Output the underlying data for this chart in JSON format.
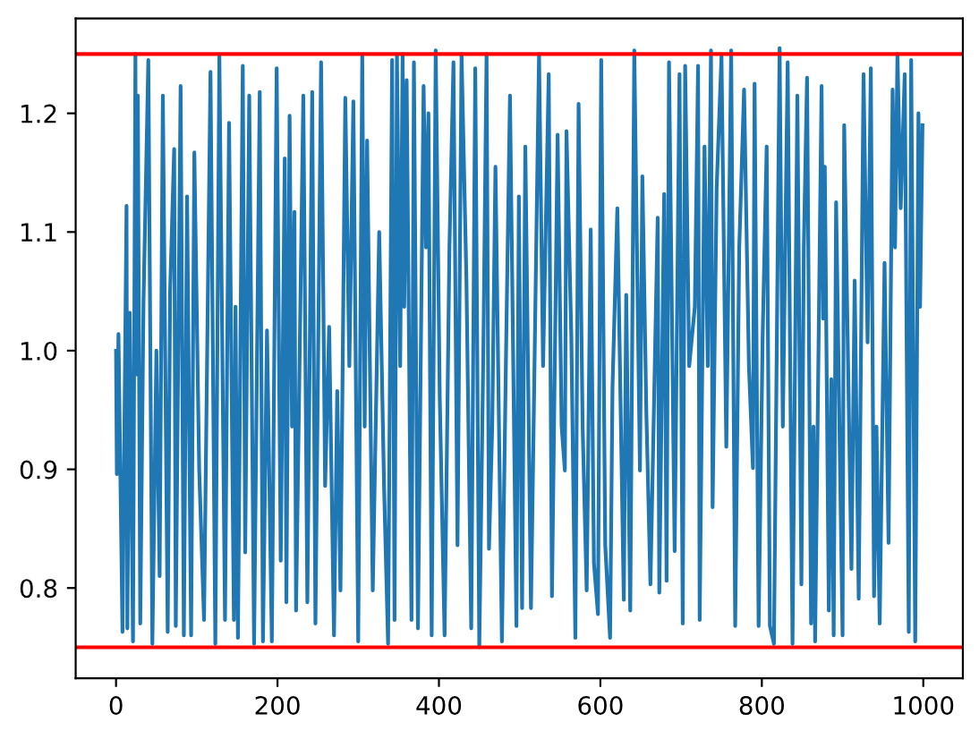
{
  "chart_data": {
    "type": "line",
    "x": [
      0,
      1,
      3,
      8,
      13,
      14,
      17,
      21,
      24,
      25,
      27,
      30,
      34,
      40,
      45,
      50,
      54,
      58,
      64,
      67,
      72,
      74,
      80,
      84,
      88,
      93,
      97,
      103,
      109,
      117,
      123,
      128,
      135,
      140,
      146,
      148,
      151,
      157,
      160,
      165,
      171,
      178,
      182,
      187,
      193,
      199,
      204,
      209,
      211,
      215,
      218,
      221,
      223,
      232,
      237,
      243,
      247,
      254,
      259,
      264,
      270,
      274,
      278,
      284,
      289,
      294,
      300,
      305,
      308,
      311,
      318,
      326,
      332,
      337,
      342,
      345,
      348,
      352,
      355,
      357,
      360,
      366,
      369,
      374,
      381,
      384,
      387,
      391,
      396,
      401,
      407,
      413,
      418,
      423,
      428,
      434,
      440,
      445,
      450,
      455,
      459,
      462,
      466,
      470,
      478,
      483,
      488,
      496,
      499,
      503,
      507,
      514,
      524,
      529,
      536,
      540,
      547,
      552,
      556,
      558,
      564,
      569,
      573,
      578,
      583,
      588,
      592,
      597,
      601,
      606,
      612,
      615,
      621,
      629,
      632,
      637,
      642,
      649,
      652,
      657,
      662,
      671,
      673,
      679,
      682,
      685,
      692,
      698,
      702,
      705,
      710,
      717,
      721,
      723,
      729,
      733,
      737,
      739,
      744,
      750,
      756,
      762,
      767,
      772,
      778,
      784,
      789,
      791,
      796,
      801,
      806,
      810,
      815,
      822,
      826,
      832,
      838,
      844,
      849,
      852,
      856,
      861,
      864,
      866,
      874,
      876,
      878,
      883,
      886,
      889,
      892,
      900,
      902,
      911,
      915,
      920,
      926,
      931,
      935,
      939,
      942,
      946,
      952,
      957,
      962,
      965,
      968,
      972,
      977,
      982,
      985,
      990,
      994,
      996,
      999
    ],
    "series": [
      {
        "color": "#1f77b4",
        "values": [
          1.0,
          0.896,
          1.014,
          0.763,
          1.122,
          0.766,
          1.032,
          0.755,
          1.25,
          0.98,
          1.215,
          0.77,
          1.04,
          1.245,
          0.753,
          1.0,
          0.81,
          1.215,
          0.763,
          1.05,
          1.17,
          0.768,
          1.223,
          0.76,
          1.13,
          0.76,
          1.167,
          0.9,
          0.773,
          1.235,
          0.753,
          1.248,
          0.773,
          1.192,
          0.773,
          1.037,
          0.758,
          1.24,
          0.83,
          1.215,
          0.753,
          1.218,
          0.755,
          1.017,
          0.755,
          1.238,
          0.823,
          1.162,
          0.788,
          1.198,
          0.936,
          1.117,
          0.781,
          1.215,
          0.788,
          1.218,
          0.77,
          1.243,
          0.886,
          1.02,
          0.76,
          0.966,
          0.798,
          1.213,
          0.987,
          1.21,
          0.755,
          1.248,
          0.936,
          1.177,
          0.798,
          1.1,
          0.886,
          0.753,
          1.245,
          0.773,
          1.248,
          0.987,
          1.25,
          1.037,
          1.228,
          0.773,
          1.243,
          0.766,
          1.223,
          1.087,
          1.2,
          0.76,
          1.253,
          0.961,
          0.76,
          1.087,
          1.243,
          0.836,
          1.25,
          1.062,
          0.766,
          1.238,
          0.75,
          1.0,
          1.25,
          0.833,
          0.936,
          1.155,
          0.755,
          0.992,
          1.215,
          0.768,
          1.13,
          0.783,
          1.172,
          0.783,
          1.25,
          0.987,
          1.233,
          0.793,
          1.182,
          0.936,
          0.899,
          1.185,
          1.012,
          0.758,
          1.208,
          0.936,
          0.798,
          1.102,
          0.821,
          0.778,
          1.245,
          0.836,
          0.758,
          0.969,
          1.12,
          0.79,
          1.047,
          0.781,
          1.253,
          0.899,
          1.147,
          0.946,
          0.803,
          1.112,
          0.796,
          1.132,
          0.806,
          1.243,
          0.831,
          1.233,
          0.77,
          1.24,
          0.987,
          1.037,
          1.24,
          0.773,
          1.172,
          0.987,
          1.253,
          0.868,
          1.137,
          1.248,
          0.919,
          1.253,
          0.768,
          1.087,
          1.22,
          0.987,
          0.901,
          1.225,
          0.768,
          1.012,
          1.172,
          0.768,
          0.753,
          1.255,
          0.936,
          1.243,
          0.753,
          1.215,
          0.803,
          1.087,
          1.23,
          0.77,
          0.936,
          0.755,
          1.223,
          1.027,
          1.155,
          0.781,
          0.976,
          0.76,
          1.125,
          0.76,
          1.19,
          0.816,
          1.059,
          0.791,
          1.233,
          1.007,
          1.238,
          0.793,
          0.936,
          0.77,
          1.074,
          0.838,
          1.22,
          1.087,
          1.25,
          1.12,
          1.233,
          0.763,
          1.245,
          0.755,
          1.2,
          1.037,
          1.19
        ]
      }
    ],
    "xlim": [
      -50,
      1049
    ],
    "ylim": [
      0.724,
      1.28
    ],
    "xticks": [
      0,
      200,
      400,
      600,
      800,
      1000
    ],
    "yticks": [
      0.8,
      0.9,
      {
        "value": 1.0,
        "label": "1.0"
      },
      1.1,
      1.2
    ],
    "ref_lines": [
      {
        "axis": "y",
        "value": 1.25,
        "color": "#ff0000"
      },
      {
        "axis": "y",
        "value": 0.75,
        "color": "#ff0000"
      }
    ]
  }
}
